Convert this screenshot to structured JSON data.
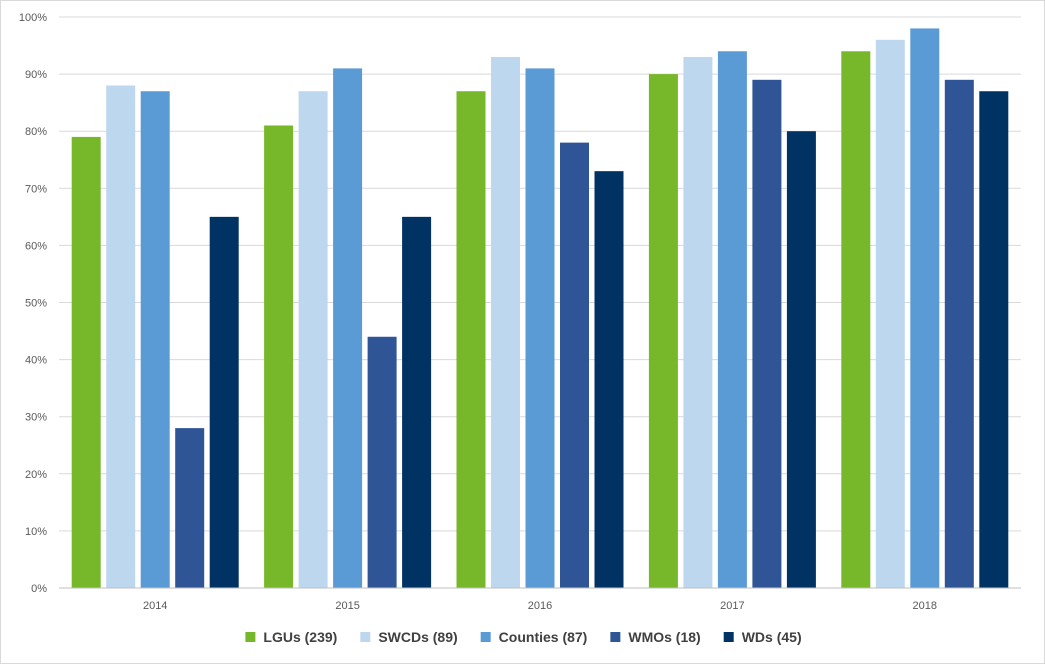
{
  "chart_data": {
    "type": "bar",
    "categories": [
      "2014",
      "2015",
      "2016",
      "2017",
      "2018"
    ],
    "series": [
      {
        "name": "LGUs (239)",
        "color": "#77b72a",
        "values": [
          79,
          81,
          87,
          90,
          94
        ]
      },
      {
        "name": "SWCDs (89)",
        "color": "#bdd7ee",
        "values": [
          88,
          87,
          93,
          93,
          96
        ]
      },
      {
        "name": "Counties (87)",
        "color": "#5b9bd5",
        "values": [
          87,
          91,
          91,
          94,
          98
        ]
      },
      {
        "name": "WMOs (18)",
        "color": "#2f5597",
        "values": [
          28,
          44,
          78,
          89,
          89
        ]
      },
      {
        "name": "WDs (45)",
        "color": "#003263",
        "values": [
          65,
          65,
          73,
          80,
          87
        ]
      }
    ],
    "y_ticks": [
      "0%",
      "10%",
      "20%",
      "30%",
      "40%",
      "50%",
      "60%",
      "70%",
      "80%",
      "90%",
      "100%"
    ],
    "ylim": [
      0,
      100
    ],
    "grid": true,
    "legend_position": "bottom",
    "title": "",
    "xlabel": "",
    "ylabel": ""
  }
}
